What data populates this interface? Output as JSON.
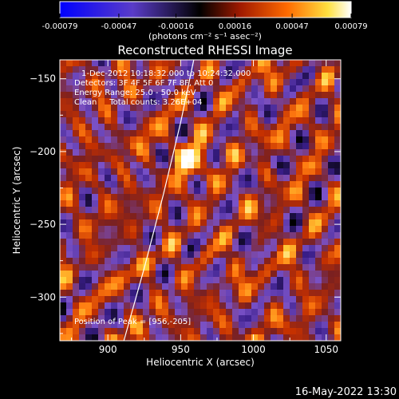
{
  "colorbar": {
    "tick_labels": [
      "-0.00079",
      "-0.00047",
      "-0.00016",
      "0.00016",
      "0.00047",
      "0.00079"
    ],
    "tick_values": [
      -0.00079,
      -0.00047,
      -0.00016,
      0.00016,
      0.00047,
      0.00079
    ],
    "range": [
      -0.00079,
      0.00079
    ],
    "unit_label": "(photons cm⁻² s⁻¹ asec⁻²)"
  },
  "chart_data": {
    "type": "heatmap",
    "title": "Reconstructed RHESSI Image",
    "xlabel": "Heliocentric X (arcsec)",
    "ylabel": "Heliocentric Y (arcsec)",
    "xlim": [
      867,
      1060
    ],
    "ylim": [
      -330,
      -137
    ],
    "x_ticks": [
      900,
      950,
      1000,
      1050
    ],
    "x_tick_labels": [
      "900",
      "950",
      "1000",
      "1050"
    ],
    "y_ticks": [
      -150,
      -200,
      -250,
      -300
    ],
    "y_tick_labels": [
      "−150",
      "−200",
      "−250",
      "−300"
    ],
    "annotations": [
      "1-Dec-2012 10:18:32.000 to 10:24:32.000",
      "Detectors: 3F 4F 5F 6F 7F 8F, Att 0",
      "Energy Range: 25.0 - 50.0 keV",
      "Clean     Total counts: 3.26E+04",
      "Position of Peak = [956,-205]"
    ],
    "peak_position": [
      956,
      -205
    ],
    "limb_curve": [
      [
        911,
        -330
      ],
      [
        925,
        -280
      ],
      [
        938,
        -230
      ],
      [
        950,
        -180
      ],
      [
        959,
        -137
      ]
    ],
    "colormap": [
      "#000000",
      "#3a1e8a",
      "#7a52c8",
      "#7a2020",
      "#c43000",
      "#ff7a10",
      "#ffd23a",
      "#ffffff"
    ],
    "colormap_negative": [
      "#0000ff",
      "#5a3cc8",
      "#000000"
    ],
    "grid": false
  },
  "footer": {
    "timestamp": "16-May-2022 13:30"
  }
}
